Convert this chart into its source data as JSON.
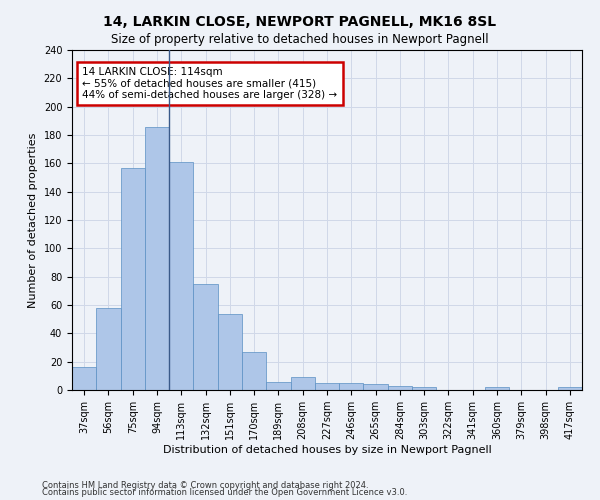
{
  "title": "14, LARKIN CLOSE, NEWPORT PAGNELL, MK16 8SL",
  "subtitle": "Size of property relative to detached houses in Newport Pagnell",
  "xlabel": "Distribution of detached houses by size in Newport Pagnell",
  "ylabel": "Number of detached properties",
  "categories": [
    "37sqm",
    "56sqm",
    "75sqm",
    "94sqm",
    "113sqm",
    "132sqm",
    "151sqm",
    "170sqm",
    "189sqm",
    "208sqm",
    "227sqm",
    "246sqm",
    "265sqm",
    "284sqm",
    "303sqm",
    "322sqm",
    "341sqm",
    "360sqm",
    "379sqm",
    "398sqm",
    "417sqm"
  ],
  "values": [
    16,
    58,
    157,
    186,
    161,
    75,
    54,
    27,
    6,
    9,
    5,
    5,
    4,
    3,
    2,
    0,
    0,
    2,
    0,
    0,
    2
  ],
  "bar_color": "#aec6e8",
  "bar_edge_color": "#5a8fc3",
  "grid_color": "#d0d8e8",
  "background_color": "#eef2f8",
  "vline_color": "#3a5a8a",
  "annotation_text": "14 LARKIN CLOSE: 114sqm\n← 55% of detached houses are smaller (415)\n44% of semi-detached houses are larger (328) →",
  "annotation_box_color": "#ffffff",
  "annotation_box_edge": "#cc0000",
  "footer1": "Contains HM Land Registry data © Crown copyright and database right 2024.",
  "footer2": "Contains public sector information licensed under the Open Government Licence v3.0.",
  "ylim": [
    0,
    240
  ],
  "yticks": [
    0,
    20,
    40,
    60,
    80,
    100,
    120,
    140,
    160,
    180,
    200,
    220,
    240
  ],
  "title_fontsize": 10,
  "xlabel_fontsize": 8,
  "ylabel_fontsize": 8,
  "tick_fontsize": 7
}
